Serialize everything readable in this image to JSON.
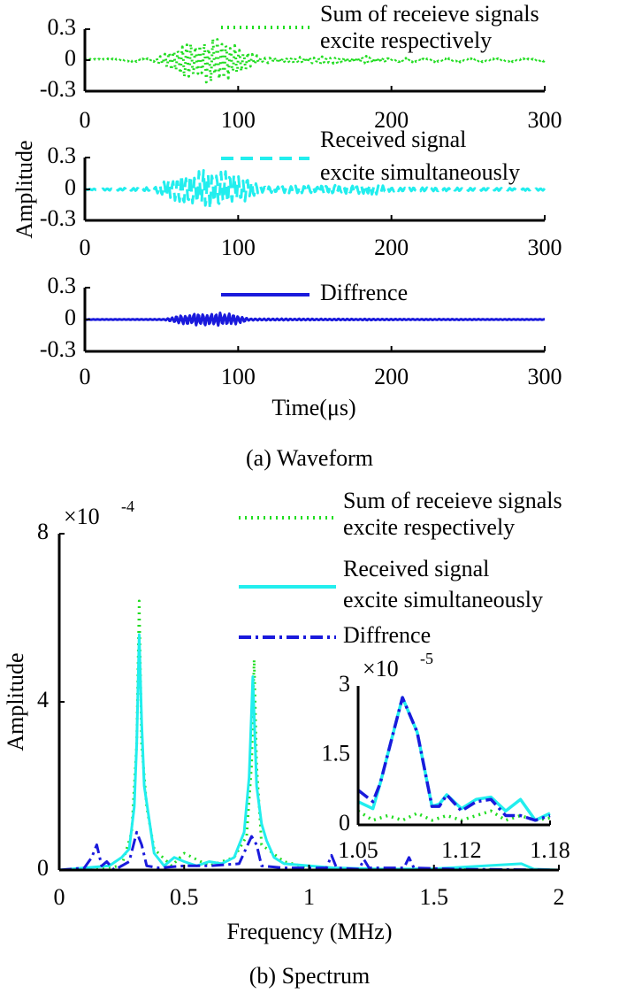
{
  "waveform": {
    "caption": "(a) Waveform",
    "xlabel": "Time(μs)",
    "ylabel": "Amplitude",
    "xlim": [
      0,
      300
    ],
    "ylim": [
      -0.3,
      0.3
    ],
    "xticks": [
      "0",
      "100",
      "200",
      "300"
    ],
    "yticks": [
      "0.3",
      "0",
      "-0.3"
    ],
    "panels": [
      {
        "legend": [
          "Sum of receieve signals",
          "excite respectively"
        ],
        "color": "#22dd22",
        "style": "dotted",
        "envelope": [
          [
            0,
            0.01
          ],
          [
            45,
            0.02
          ],
          [
            55,
            0.1
          ],
          [
            65,
            0.18
          ],
          [
            80,
            0.22
          ],
          [
            92,
            0.22
          ],
          [
            105,
            0.1
          ],
          [
            115,
            0.03
          ],
          [
            150,
            0.04
          ],
          [
            190,
            0.04
          ],
          [
            200,
            0.02
          ],
          [
            300,
            0.015
          ]
        ]
      },
      {
        "legend": [
          "Received signal",
          "excite simultaneously"
        ],
        "color": "#22eeee",
        "style": "dashed",
        "envelope": [
          [
            0,
            0.005
          ],
          [
            45,
            0.02
          ],
          [
            55,
            0.1
          ],
          [
            65,
            0.16
          ],
          [
            80,
            0.19
          ],
          [
            92,
            0.18
          ],
          [
            105,
            0.12
          ],
          [
            115,
            0.03
          ],
          [
            150,
            0.04
          ],
          [
            190,
            0.05
          ],
          [
            200,
            0.02
          ],
          [
            300,
            0.01
          ]
        ]
      },
      {
        "legend": [
          "Diffrence"
        ],
        "color": "#1a1adc",
        "style": "solid",
        "envelope": [
          [
            0,
            0.002
          ],
          [
            52,
            0.004
          ],
          [
            60,
            0.04
          ],
          [
            75,
            0.06
          ],
          [
            92,
            0.07
          ],
          [
            100,
            0.04
          ],
          [
            108,
            0.008
          ],
          [
            300,
            0.003
          ]
        ]
      }
    ]
  },
  "spectrum": {
    "chart_data": {
      "type": "line",
      "caption": "(b) Spectrum",
      "xlabel": "Frequency (MHz)",
      "ylabel": "Amplitude",
      "y_multiplier": "×10",
      "y_exponent": "-4",
      "xlim": [
        0,
        2
      ],
      "ylim": [
        0,
        8
      ],
      "xticks": [
        "0",
        "0.5",
        "1",
        "1.5",
        "2"
      ],
      "yticks": [
        "0",
        "4",
        "8"
      ],
      "legend_placement": "top-right",
      "series": [
        {
          "name": [
            "Sum of receieve signals",
            "excite respectively"
          ],
          "color": "#22dd22",
          "style": "dotted",
          "points": [
            [
              0,
              0
            ],
            [
              0.1,
              0
            ],
            [
              0.25,
              0.1
            ],
            [
              0.29,
              0.9
            ],
            [
              0.31,
              3
            ],
            [
              0.32,
              6.4
            ],
            [
              0.33,
              3
            ],
            [
              0.35,
              1.5
            ],
            [
              0.38,
              0.5
            ],
            [
              0.45,
              0.1
            ],
            [
              0.5,
              0.4
            ],
            [
              0.6,
              0.1
            ],
            [
              0.7,
              0.3
            ],
            [
              0.75,
              0.8
            ],
            [
              0.77,
              2.5
            ],
            [
              0.78,
              5.0
            ],
            [
              0.79,
              2.5
            ],
            [
              0.81,
              0.6
            ],
            [
              0.9,
              0.2
            ],
            [
              1,
              0.05
            ],
            [
              1.2,
              0.02
            ],
            [
              2,
              0
            ]
          ]
        },
        {
          "name": [
            "Received signal",
            "excite simultaneously"
          ],
          "color": "#22eeee",
          "style": "solid",
          "points": [
            [
              0,
              0
            ],
            [
              0.1,
              0.05
            ],
            [
              0.2,
              0.1
            ],
            [
              0.25,
              0.3
            ],
            [
              0.28,
              0.5
            ],
            [
              0.3,
              1.5
            ],
            [
              0.31,
              3
            ],
            [
              0.32,
              5.6
            ],
            [
              0.33,
              3.5
            ],
            [
              0.34,
              2.0
            ],
            [
              0.36,
              1.2
            ],
            [
              0.38,
              0.4
            ],
            [
              0.42,
              0.1
            ],
            [
              0.46,
              0.3
            ],
            [
              0.5,
              0.2
            ],
            [
              0.55,
              0.1
            ],
            [
              0.6,
              0.2
            ],
            [
              0.65,
              0.15
            ],
            [
              0.7,
              0.3
            ],
            [
              0.74,
              0.9
            ],
            [
              0.76,
              2.2
            ],
            [
              0.775,
              4.6
            ],
            [
              0.79,
              2.0
            ],
            [
              0.81,
              1.1
            ],
            [
              0.83,
              0.7
            ],
            [
              0.86,
              0.3
            ],
            [
              0.9,
              0.15
            ],
            [
              1,
              0.1
            ],
            [
              1.1,
              0.05
            ],
            [
              1.3,
              0.02
            ],
            [
              1.5,
              0.03
            ],
            [
              1.85,
              0.15
            ],
            [
              1.9,
              0.02
            ],
            [
              2,
              0
            ]
          ]
        },
        {
          "name": [
            "Diffrence"
          ],
          "color": "#1a1adc",
          "style": "dashdot",
          "points": [
            [
              0,
              0
            ],
            [
              0.1,
              0.05
            ],
            [
              0.13,
              0.3
            ],
            [
              0.15,
              0.6
            ],
            [
              0.17,
              0.1
            ],
            [
              0.19,
              0.2
            ],
            [
              0.22,
              0
            ],
            [
              0.28,
              0.2
            ],
            [
              0.31,
              0.9
            ],
            [
              0.33,
              0.6
            ],
            [
              0.35,
              0.1
            ],
            [
              0.4,
              0.05
            ],
            [
              0.5,
              0.1
            ],
            [
              0.6,
              0.1
            ],
            [
              0.72,
              0.15
            ],
            [
              0.77,
              0.8
            ],
            [
              0.79,
              0.6
            ],
            [
              0.81,
              0.1
            ],
            [
              0.9,
              0.05
            ],
            [
              1.07,
              0.05
            ],
            [
              1.09,
              0.35
            ],
            [
              1.11,
              0.05
            ],
            [
              1.2,
              0.02
            ],
            [
              1.22,
              0.25
            ],
            [
              1.24,
              0.05
            ],
            [
              1.38,
              0.05
            ],
            [
              1.4,
              0.3
            ],
            [
              1.42,
              0.05
            ],
            [
              1.6,
              0.02
            ],
            [
              2,
              0
            ]
          ]
        }
      ],
      "inset": {
        "xlim": [
          1.05,
          1.18
        ],
        "ylim": [
          0,
          3
        ],
        "xticks": [
          "1.05",
          "1.12",
          "1.18"
        ],
        "yticks": [
          "0",
          "1.5",
          "3"
        ],
        "y_multiplier": "×10",
        "y_exponent": "-5",
        "series": [
          {
            "color": "#22dd22",
            "style": "dotted",
            "points": [
              [
                1.05,
                0.3
              ],
              [
                1.06,
                0.1
              ],
              [
                1.07,
                0.2
              ],
              [
                1.08,
                0.1
              ],
              [
                1.09,
                0.25
              ],
              [
                1.1,
                0.1
              ],
              [
                1.11,
                0.2
              ],
              [
                1.12,
                0.1
              ],
              [
                1.13,
                0.2
              ],
              [
                1.14,
                0.3
              ],
              [
                1.15,
                0.1
              ],
              [
                1.16,
                0.2
              ],
              [
                1.17,
                0.1
              ],
              [
                1.18,
                0.15
              ]
            ]
          },
          {
            "color": "#22eeee",
            "style": "solid",
            "points": [
              [
                1.05,
                0.5
              ],
              [
                1.06,
                0.35
              ],
              [
                1.065,
                0.9
              ],
              [
                1.08,
                2.75
              ],
              [
                1.09,
                2.0
              ],
              [
                1.1,
                0.4
              ],
              [
                1.105,
                0.45
              ],
              [
                1.11,
                0.65
              ],
              [
                1.12,
                0.35
              ],
              [
                1.13,
                0.55
              ],
              [
                1.14,
                0.6
              ],
              [
                1.15,
                0.3
              ],
              [
                1.16,
                0.55
              ],
              [
                1.17,
                0.1
              ],
              [
                1.18,
                0.25
              ]
            ]
          },
          {
            "color": "#1a1adc",
            "style": "dashdot",
            "points": [
              [
                1.05,
                0.75
              ],
              [
                1.06,
                0.5
              ],
              [
                1.065,
                0.9
              ],
              [
                1.08,
                2.75
              ],
              [
                1.09,
                2.0
              ],
              [
                1.1,
                0.4
              ],
              [
                1.105,
                0.4
              ],
              [
                1.11,
                0.65
              ],
              [
                1.12,
                0.3
              ],
              [
                1.13,
                0.5
              ],
              [
                1.14,
                0.55
              ],
              [
                1.15,
                0.2
              ],
              [
                1.16,
                0.2
              ],
              [
                1.17,
                0.1
              ],
              [
                1.18,
                0.2
              ]
            ]
          }
        ]
      }
    }
  }
}
